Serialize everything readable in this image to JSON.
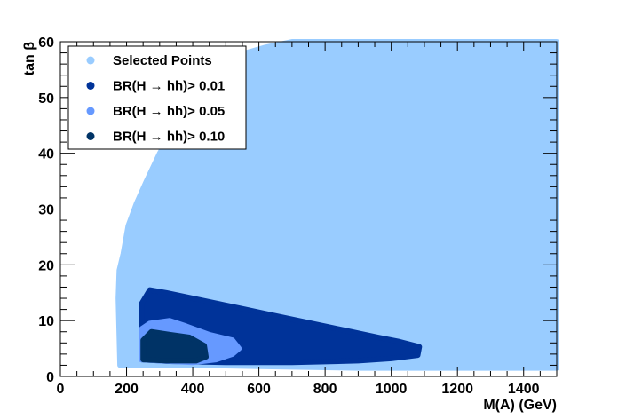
{
  "chart_data": {
    "type": "scatter",
    "xlabel": "M(A) (GeV)",
    "ylabel": "tan β",
    "xlim": [
      0,
      1500
    ],
    "ylim": [
      0,
      60
    ],
    "xticks": [
      0,
      200,
      400,
      600,
      800,
      1000,
      1200,
      1400
    ],
    "yticks": [
      0,
      10,
      20,
      30,
      40,
      50,
      60
    ],
    "grid": false,
    "legend_placement": "top-left",
    "series": [
      {
        "name": "Selected Points",
        "color": "#99ccff",
        "region_outline": [
          [
            180,
            2
          ],
          [
            175,
            14
          ],
          [
            178,
            19
          ],
          [
            190,
            22
          ],
          [
            205,
            27
          ],
          [
            230,
            31
          ],
          [
            260,
            35
          ],
          [
            300,
            40
          ],
          [
            340,
            44
          ],
          [
            380,
            48
          ],
          [
            420,
            51
          ],
          [
            470,
            55
          ],
          [
            520,
            57
          ],
          [
            560,
            58
          ],
          [
            620,
            59
          ],
          [
            700,
            60
          ],
          [
            1500,
            60
          ],
          [
            1500,
            1.5
          ],
          [
            1200,
            1.5
          ],
          [
            900,
            1.5
          ],
          [
            600,
            1.8
          ],
          [
            400,
            2
          ],
          [
            250,
            2
          ]
        ]
      },
      {
        "name": "BR(H → hh)> 0.01",
        "color": "#003399",
        "region_outline": [
          [
            245,
            3
          ],
          [
            245,
            13
          ],
          [
            270,
            15.5
          ],
          [
            320,
            15
          ],
          [
            400,
            14
          ],
          [
            480,
            13
          ],
          [
            560,
            12
          ],
          [
            640,
            11
          ],
          [
            720,
            10
          ],
          [
            800,
            9
          ],
          [
            880,
            8
          ],
          [
            960,
            7
          ],
          [
            1020,
            6.3
          ],
          [
            1085,
            5.3
          ],
          [
            1080,
            3.8
          ],
          [
            1000,
            3.2
          ],
          [
            900,
            2.8
          ],
          [
            700,
            2.5
          ],
          [
            500,
            2.5
          ],
          [
            330,
            2.7
          ]
        ]
      },
      {
        "name": "BR(H → hh)> 0.05",
        "color": "#6699ff",
        "region_outline": [
          [
            245,
            3
          ],
          [
            245,
            8.5
          ],
          [
            270,
            9.5
          ],
          [
            330,
            10
          ],
          [
            380,
            9
          ],
          [
            450,
            7.5
          ],
          [
            520,
            6.5
          ],
          [
            540,
            5
          ],
          [
            520,
            4
          ],
          [
            470,
            3
          ],
          [
            400,
            2.5
          ],
          [
            300,
            2.8
          ]
        ]
      },
      {
        "name": "BR(H → hh)> 0.10",
        "color": "#003366",
        "region_outline": [
          [
            250,
            3
          ],
          [
            250,
            6.5
          ],
          [
            275,
            8
          ],
          [
            330,
            7.5
          ],
          [
            390,
            7
          ],
          [
            435,
            5.5
          ],
          [
            440,
            3.5
          ],
          [
            410,
            2.8
          ],
          [
            320,
            2.8
          ]
        ]
      }
    ]
  }
}
